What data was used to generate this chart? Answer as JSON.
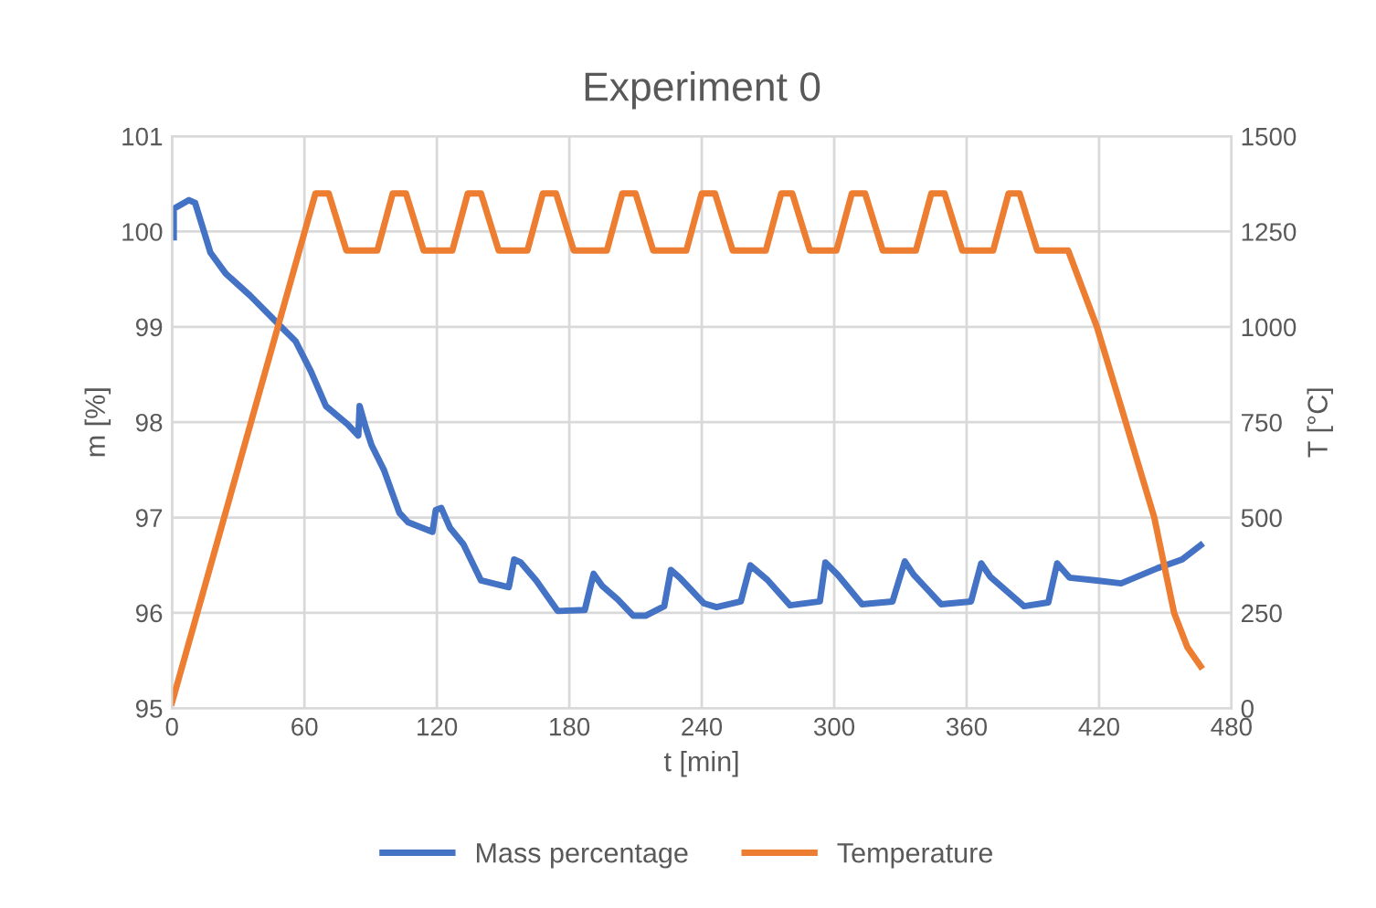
{
  "chart_data": {
    "type": "line",
    "title": "Experiment 0",
    "xlabel": "t [min]",
    "ylabel": "m [%]",
    "y2label": "T [°C]",
    "xlim": [
      0,
      480
    ],
    "xticks": [
      0,
      60,
      120,
      180,
      240,
      300,
      360,
      420,
      480
    ],
    "ylim": [
      95,
      101
    ],
    "yticks": [
      95,
      96,
      97,
      98,
      99,
      100,
      101
    ],
    "y2lim": [
      0,
      1500
    ],
    "y2ticks": [
      0,
      250,
      500,
      750,
      1000,
      1250,
      1500
    ],
    "grid": true,
    "legend": "bottom",
    "line_style": "solid",
    "marker": "none",
    "series": [
      {
        "name": "Mass percentage",
        "color": "#4472c4",
        "x": [
          0.8,
          0.8,
          7.7,
          10.5,
          17.4,
          24.3,
          35.3,
          49,
          56,
          63,
          69.7,
          79.5,
          84.4,
          85,
          87.7,
          90.4,
          96,
          103,
          107,
          118,
          119.5,
          122,
          126,
          132,
          140,
          152.6,
          155,
          158,
          165,
          174.7,
          187,
          191,
          195,
          202,
          209,
          214.5,
          223,
          226,
          230,
          241,
          246.7,
          257.7,
          262,
          270,
          280,
          293.5,
          296,
          301.6,
          312.6,
          326.4,
          332,
          336,
          348.5,
          362,
          366.6,
          370.7,
          386,
          397,
          401,
          406.6,
          419,
          430,
          446.6,
          457.6,
          466
        ],
        "values": [
          99.94,
          100.24,
          100.33,
          100.3,
          99.78,
          99.56,
          99.33,
          99.01,
          98.85,
          98.53,
          98.17,
          97.98,
          97.86,
          98.17,
          97.95,
          97.76,
          97.5,
          97.05,
          96.95,
          96.85,
          97.08,
          97.1,
          96.89,
          96.72,
          96.34,
          96.27,
          96.56,
          96.53,
          96.34,
          96.02,
          96.03,
          96.41,
          96.28,
          96.14,
          95.97,
          95.97,
          96.07,
          96.45,
          96.37,
          96.1,
          96.06,
          96.12,
          96.5,
          96.34,
          96.08,
          96.12,
          96.53,
          96.4,
          96.09,
          96.12,
          96.54,
          96.4,
          96.09,
          96.12,
          96.52,
          96.38,
          96.07,
          96.11,
          96.52,
          96.37,
          96.34,
          96.31,
          96.47,
          96.56,
          96.71
        ]
      },
      {
        "name": "Temperature",
        "color": "#ed7d31",
        "axis": "y2",
        "x": [
          0,
          65,
          71,
          79,
          93,
          100,
          106,
          114,
          127,
          134,
          140,
          148,
          161,
          168,
          174,
          182,
          197,
          204,
          210,
          218,
          233,
          240,
          246,
          254,
          269,
          276,
          281,
          289,
          301,
          308,
          314,
          322,
          337,
          344,
          350,
          358,
          372,
          379,
          384,
          392,
          406,
          419,
          430,
          445,
          454,
          460,
          466
        ],
        "values": [
          15,
          1350,
          1350,
          1200,
          1200,
          1350,
          1350,
          1200,
          1200,
          1350,
          1350,
          1200,
          1200,
          1350,
          1350,
          1200,
          1200,
          1350,
          1350,
          1200,
          1200,
          1350,
          1350,
          1200,
          1200,
          1350,
          1350,
          1200,
          1200,
          1350,
          1350,
          1200,
          1200,
          1350,
          1350,
          1200,
          1200,
          1350,
          1350,
          1200,
          1200,
          1000,
          790,
          500,
          250,
          160,
          110
        ]
      }
    ]
  }
}
